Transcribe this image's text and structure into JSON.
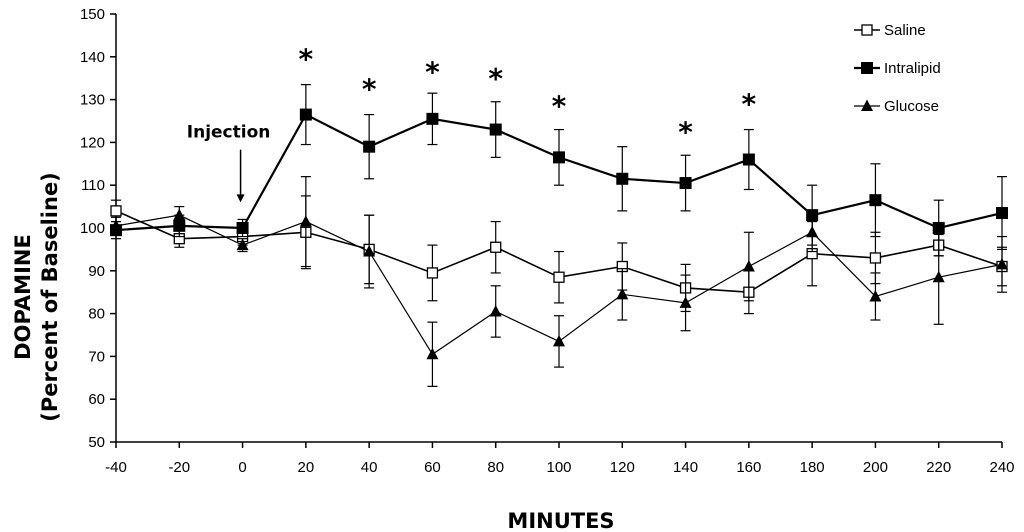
{
  "chart_data": {
    "type": "line",
    "title": "",
    "xlabel": "MINUTES",
    "ylabel_line1": "DOPAMINE",
    "ylabel_line2": "(Percent of Baseline)",
    "x": [
      -40,
      -20,
      0,
      20,
      40,
      60,
      80,
      100,
      120,
      140,
      160,
      180,
      200,
      220,
      240
    ],
    "xticks": [
      "-40",
      "-20",
      "0",
      "20",
      "40",
      "60",
      "80",
      "100",
      "120",
      "140",
      "160",
      "180",
      "200",
      "220",
      "240"
    ],
    "yticks": [
      "50",
      "60",
      "70",
      "80",
      "90",
      "100",
      "110",
      "120",
      "130",
      "140",
      "150"
    ],
    "xlim": [
      -40,
      240
    ],
    "ylim": [
      50,
      150
    ],
    "legend_position": "top-right",
    "series": [
      {
        "name": "Saline",
        "marker": "open-square",
        "color": "#000000",
        "values": [
          104,
          97.5,
          98,
          99,
          95,
          89.5,
          95.5,
          88.5,
          91,
          86,
          85,
          94,
          93,
          96,
          91
        ],
        "errors": [
          2.5,
          2,
          2,
          8.5,
          8,
          6.5,
          6,
          6,
          5.5,
          5.5,
          5,
          7.5,
          6,
          2.5,
          4.5
        ]
      },
      {
        "name": "Intralipid",
        "marker": "filled-square",
        "color": "#000000",
        "values": [
          99.5,
          100.5,
          100,
          126.5,
          119,
          125.5,
          123,
          116.5,
          111.5,
          110.5,
          116,
          103,
          106.5,
          100,
          103.5
        ],
        "errors": [
          2,
          2.5,
          2,
          7,
          7.5,
          6,
          6.5,
          6.5,
          7.5,
          6.5,
          7,
          7,
          8.5,
          6.5,
          8.5
        ]
      },
      {
        "name": "Glucose",
        "marker": "filled-triangle",
        "color": "#000000",
        "values": [
          100.5,
          103,
          96,
          101.5,
          94.5,
          70.5,
          80.5,
          73.5,
          84.5,
          82.5,
          91,
          99,
          84,
          88.5,
          91.5
        ],
        "errors": [
          2,
          2,
          1.5,
          10.5,
          8.5,
          7.5,
          6,
          6,
          6,
          6.5,
          8,
          4.5,
          5.5,
          11,
          6.5
        ]
      }
    ],
    "significance_markers": {
      "symbol": "*",
      "x": [
        20,
        40,
        60,
        80,
        100,
        140,
        160
      ],
      "y": [
        140.5,
        133.5,
        137.5,
        136,
        129.5,
        123.5,
        130
      ]
    },
    "annotations": [
      {
        "text": "Injection",
        "x": 0,
        "y": 122.5,
        "arrow_to_y": 106
      }
    ]
  }
}
